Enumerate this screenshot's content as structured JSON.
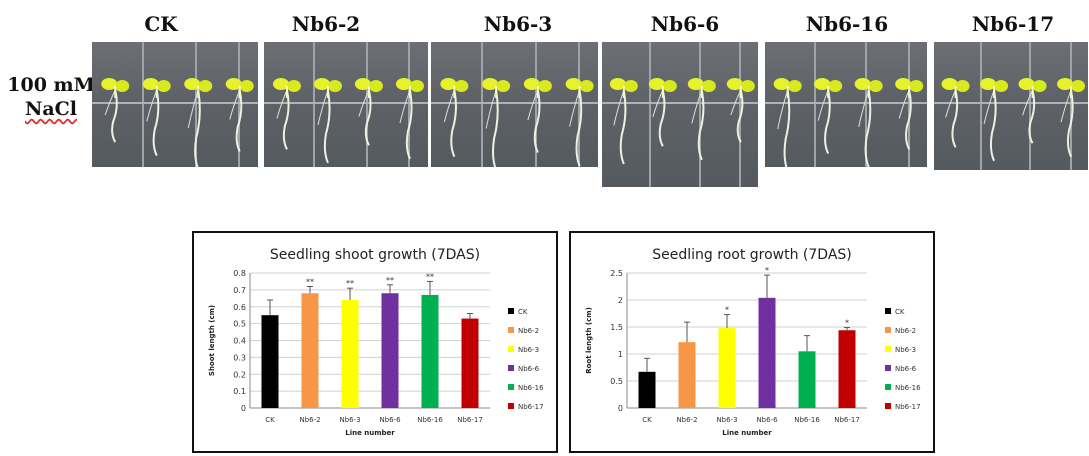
{
  "top_labels": [
    "CK",
    "Nb6-2",
    "Nb6-3",
    "Nb6-6",
    "Nb6-16",
    "Nb6-17"
  ],
  "condition": {
    "line1": "100 mM",
    "line2": "NaCl"
  },
  "chart_data": [
    {
      "type": "bar",
      "title": "Seedling shoot growth (7DAS)",
      "xlabel": "Line number",
      "ylabel": "Shoot length (cm)",
      "categories": [
        "CK",
        "Nb6-2",
        "Nb6-3",
        "Nb6-6",
        "Nb6-16",
        "Nb6-17"
      ],
      "values": [
        0.55,
        0.68,
        0.64,
        0.68,
        0.67,
        0.53
      ],
      "errors": [
        0.09,
        0.04,
        0.07,
        0.05,
        0.08,
        0.03
      ],
      "significance": [
        "",
        "**",
        "**",
        "**",
        "**",
        ""
      ],
      "colors": [
        "#000000",
        "#f79646",
        "#ffff00",
        "#7030a0",
        "#00b050",
        "#c00000"
      ],
      "ylim": [
        0,
        0.8
      ],
      "yticks": [
        "0",
        "0.1",
        "0.2",
        "0.3",
        "0.4",
        "0.5",
        "0.6",
        "0.7",
        "0.8"
      ],
      "legend": [
        "CK",
        "Nb6-2",
        "Nb6-3",
        "Nb6-6",
        "Nb6-16",
        "Nb6-17"
      ]
    },
    {
      "type": "bar",
      "title": "Seedling root growth (7DAS)",
      "xlabel": "Line number",
      "ylabel": "Root length (cm)",
      "categories": [
        "CK",
        "Nb6-2",
        "Nb6-3",
        "Nb6-6",
        "Nb6-16",
        "Nb6-17"
      ],
      "values": [
        0.67,
        1.22,
        1.48,
        2.04,
        1.05,
        1.44
      ],
      "errors": [
        0.25,
        0.37,
        0.25,
        0.42,
        0.29,
        0.05
      ],
      "significance": [
        "",
        "",
        "*",
        "*",
        "",
        "*"
      ],
      "colors": [
        "#000000",
        "#f79646",
        "#ffff00",
        "#7030a0",
        "#00b050",
        "#c00000"
      ],
      "ylim": [
        0,
        2.5
      ],
      "yticks": [
        "0",
        "0.5",
        "1",
        "1.5",
        "2",
        "2.5"
      ],
      "legend": [
        "CK",
        "Nb6-2",
        "Nb6-3",
        "Nb6-6",
        "Nb6-16",
        "Nb6-17"
      ]
    }
  ]
}
